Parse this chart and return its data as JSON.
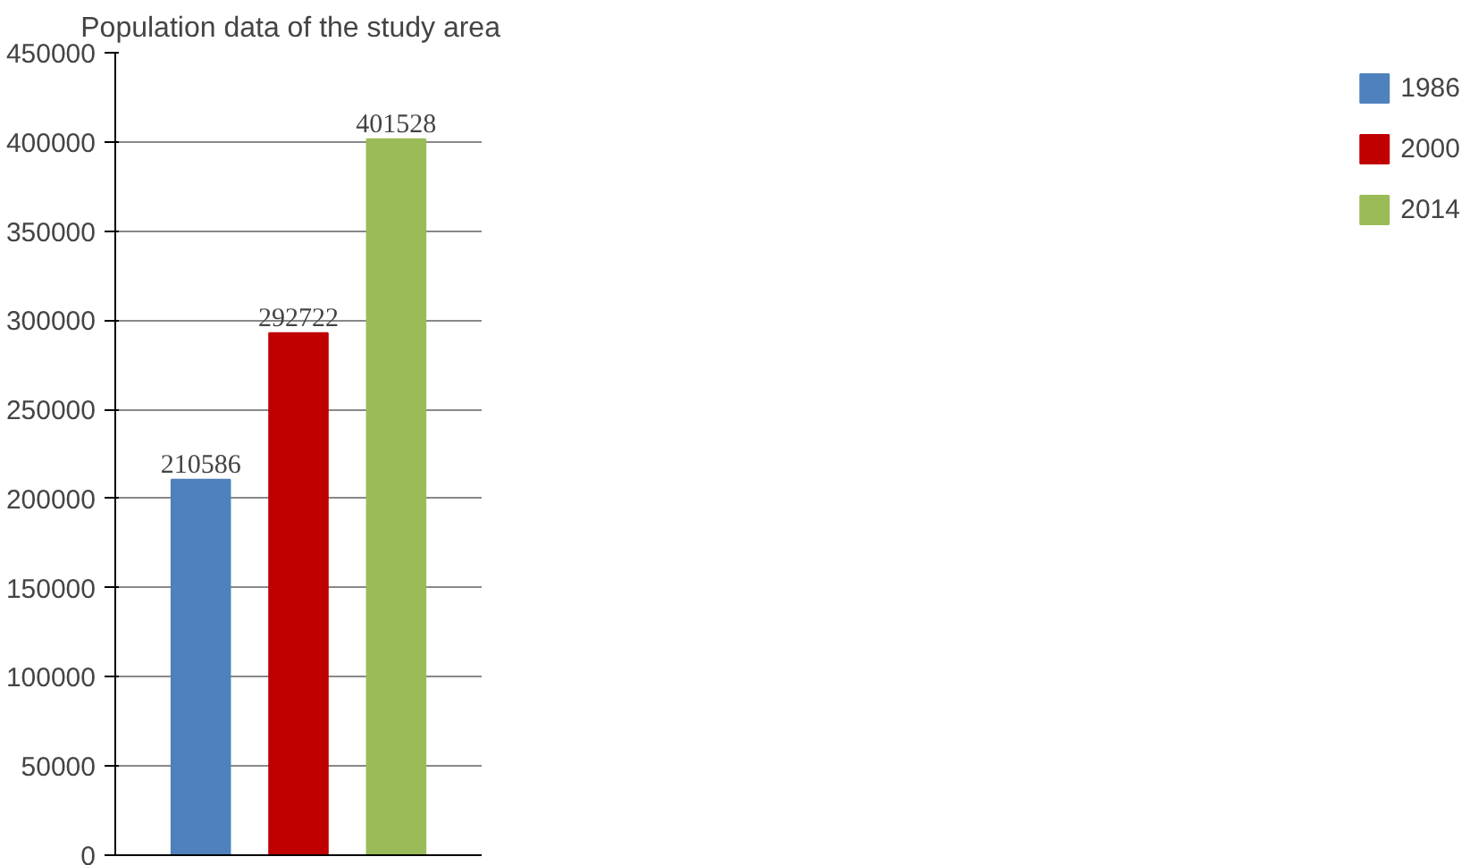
{
  "chart_data": {
    "type": "bar",
    "title": "Population  data  of the study area",
    "categories": [
      null
    ],
    "series": [
      {
        "name": "1986",
        "color": "#4f81bd",
        "values": [
          210586
        ]
      },
      {
        "name": "2000",
        "color": "#c00000",
        "values": [
          292722
        ]
      },
      {
        "name": "2014",
        "color": "#9bbb59",
        "values": [
          401528
        ]
      }
    ],
    "ylim": [
      0,
      450000
    ],
    "yticks": [
      0,
      50000,
      100000,
      150000,
      200000,
      250000,
      300000,
      350000,
      400000,
      450000
    ],
    "grid": "y",
    "legend": "right",
    "data_labels": true
  }
}
